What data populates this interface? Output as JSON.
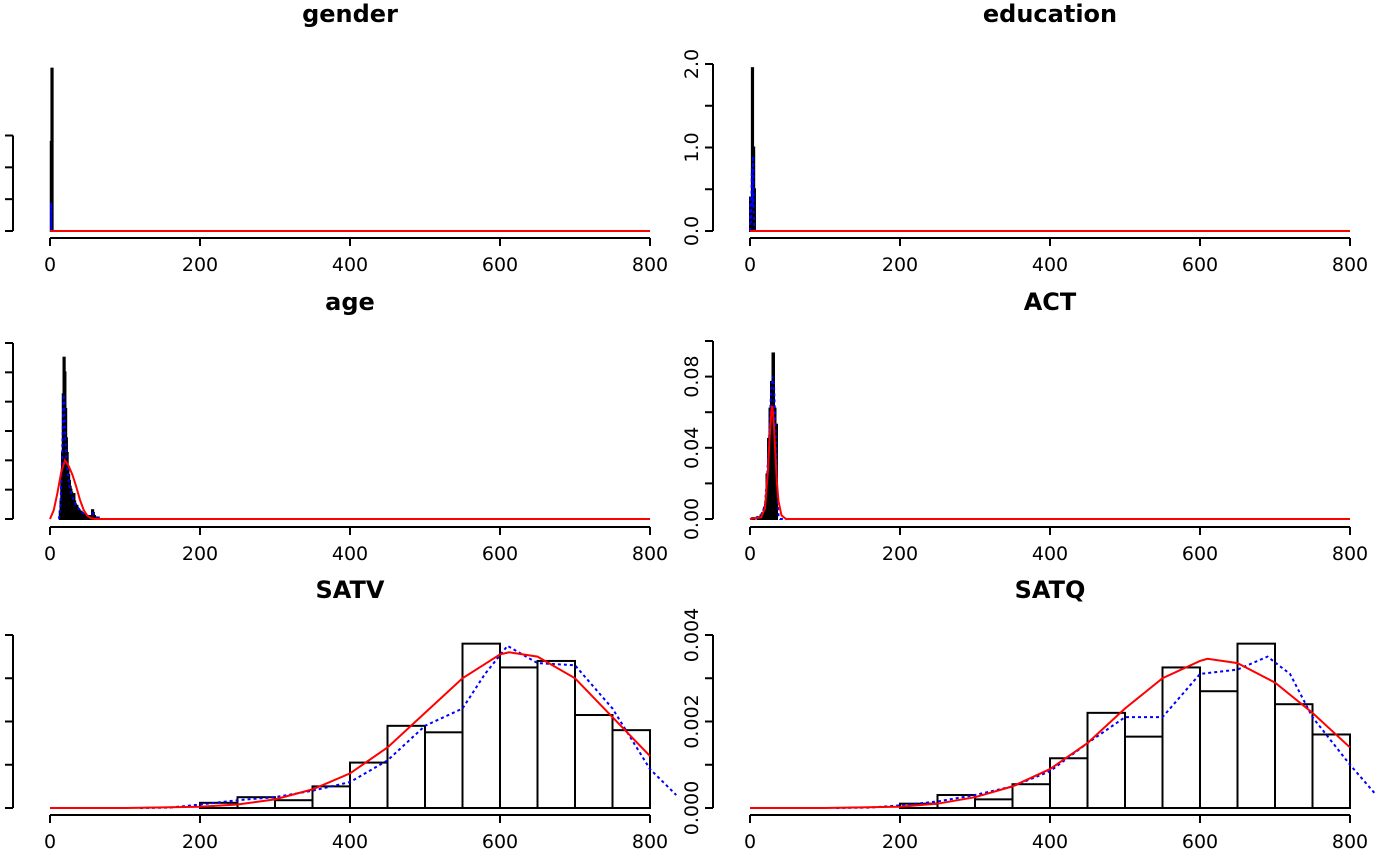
{
  "page_title": "",
  "chart_data": [
    {
      "type": "histogram",
      "title": "gender",
      "xlabel": "",
      "ylabel": "",
      "xlim": [
        0,
        800
      ],
      "ylim": [
        0,
        3
      ],
      "x_ticks": [
        "0",
        "200",
        "400",
        "600",
        "800"
      ],
      "y_ticks": [],
      "y_tick_marks": [
        0,
        0.5,
        1,
        1.5
      ],
      "bins": [
        [
          1.0,
          1.1,
          1.4
        ],
        [
          1.9,
          2.0,
          2.55
        ]
      ],
      "density_line": [
        [
          0,
          0
        ],
        [
          1.6,
          0
        ],
        [
          1.6,
          0.45
        ],
        [
          1.7,
          0
        ],
        [
          800,
          0
        ]
      ],
      "normal_curve": [
        [
          0,
          0
        ],
        [
          800,
          0
        ]
      ]
    },
    {
      "type": "histogram",
      "title": "education",
      "xlabel": "",
      "ylabel": "",
      "xlim": [
        0,
        800
      ],
      "ylim": [
        0,
        2
      ],
      "x_ticks": [
        "0",
        "200",
        "400",
        "600",
        "800"
      ],
      "y_ticks": [
        "0.0",
        "1.0",
        "2.0"
      ],
      "y_tick_marks": [
        0,
        0.5,
        1,
        1.5,
        2
      ],
      "bins": [
        [
          0,
          0.5,
          0.4
        ],
        [
          1.0,
          1.5,
          0.4
        ],
        [
          2.5,
          3.0,
          1.95
        ],
        [
          3.0,
          3.5,
          0.6
        ],
        [
          4.0,
          4.5,
          1.0
        ],
        [
          5.0,
          5.5,
          0.5
        ]
      ],
      "density_line": [
        [
          0,
          0
        ],
        [
          0.5,
          0.38
        ],
        [
          1.5,
          0.1
        ],
        [
          2.5,
          0.75
        ],
        [
          3.5,
          0.3
        ],
        [
          4.2,
          0.9
        ],
        [
          5.0,
          0.2
        ],
        [
          6.0,
          0
        ],
        [
          800,
          0
        ]
      ],
      "normal_curve": [
        [
          0,
          0
        ],
        [
          800,
          0
        ]
      ]
    },
    {
      "type": "histogram",
      "title": "age",
      "xlabel": "",
      "ylabel": "",
      "xlim": [
        0,
        800
      ],
      "ylim": [
        0,
        0.12
      ],
      "x_ticks": [
        "0",
        "200",
        "400",
        "600",
        "800"
      ],
      "y_ticks": [],
      "y_tick_marks": [
        0,
        0.02,
        0.04,
        0.06,
        0.08,
        0.1,
        0.12
      ],
      "bins": [
        [
          13,
          14,
          0.005
        ],
        [
          14,
          15,
          0.012
        ],
        [
          15,
          16,
          0.03
        ],
        [
          16,
          17,
          0.045
        ],
        [
          17,
          18,
          0.085
        ],
        [
          18,
          19,
          0.11
        ],
        [
          19,
          20,
          0.1
        ],
        [
          20,
          21,
          0.075
        ],
        [
          21,
          22,
          0.055
        ],
        [
          22,
          23,
          0.045
        ],
        [
          23,
          24,
          0.035
        ],
        [
          24,
          25,
          0.03
        ],
        [
          25,
          26,
          0.026
        ],
        [
          26,
          27,
          0.022
        ],
        [
          27,
          28,
          0.02
        ],
        [
          28,
          29,
          0.018
        ],
        [
          29,
          30,
          0.016
        ],
        [
          30,
          31,
          0.014
        ],
        [
          31,
          32,
          0.017
        ],
        [
          32,
          33,
          0.012
        ],
        [
          33,
          34,
          0.01
        ],
        [
          34,
          35,
          0.009
        ],
        [
          35,
          36,
          0.009
        ],
        [
          36,
          37,
          0.007
        ],
        [
          37,
          38,
          0.006
        ],
        [
          38,
          39,
          0.006
        ],
        [
          39,
          40,
          0.005
        ],
        [
          40,
          42,
          0.005
        ],
        [
          42,
          44,
          0.004
        ],
        [
          44,
          46,
          0.003
        ],
        [
          46,
          48,
          0.003
        ],
        [
          48,
          50,
          0.002
        ],
        [
          50,
          52,
          0.002
        ],
        [
          52,
          54,
          0.002
        ],
        [
          54,
          56,
          0.002
        ],
        [
          56,
          57,
          0.006
        ],
        [
          57,
          58,
          0.004
        ],
        [
          58,
          60,
          0.002
        ],
        [
          60,
          65,
          0.001
        ]
      ],
      "density_line": [
        [
          12,
          0
        ],
        [
          14,
          0.01
        ],
        [
          16,
          0.04
        ],
        [
          18,
          0.085
        ],
        [
          19,
          0.082
        ],
        [
          20,
          0.06
        ],
        [
          22,
          0.04
        ],
        [
          24,
          0.03
        ],
        [
          26,
          0.022
        ],
        [
          30,
          0.015
        ],
        [
          34,
          0.01
        ],
        [
          40,
          0.006
        ],
        [
          46,
          0.003
        ],
        [
          52,
          0.002
        ],
        [
          57,
          0.004
        ],
        [
          62,
          0.001
        ],
        [
          66,
          0
        ],
        [
          800,
          0
        ]
      ],
      "normal_curve": [
        [
          0,
          0
        ],
        [
          5,
          0.006
        ],
        [
          10,
          0.018
        ],
        [
          15,
          0.032
        ],
        [
          20,
          0.04
        ],
        [
          25,
          0.036
        ],
        [
          30,
          0.03
        ],
        [
          35,
          0.022
        ],
        [
          40,
          0.013
        ],
        [
          45,
          0.006
        ],
        [
          50,
          0.002
        ],
        [
          55,
          0.0005
        ],
        [
          60,
          0
        ],
        [
          800,
          0
        ]
      ]
    },
    {
      "type": "histogram",
      "title": "ACT",
      "xlabel": "",
      "ylabel": "",
      "xlim": [
        0,
        800
      ],
      "ylim": [
        0,
        0.1
      ],
      "x_ticks": [
        "0",
        "200",
        "400",
        "600",
        "800"
      ],
      "y_ticks": [
        "0.00",
        "0.04",
        "0.08"
      ],
      "y_tick_marks": [
        0,
        0.02,
        0.04,
        0.06,
        0.08,
        0.1
      ],
      "bins": [
        [
          3,
          6,
          0.0005
        ],
        [
          10,
          12,
          0.001
        ],
        [
          14,
          16,
          0.002
        ],
        [
          16,
          18,
          0.003
        ],
        [
          18,
          20,
          0.005
        ],
        [
          20,
          22,
          0.008
        ],
        [
          22,
          24,
          0.025
        ],
        [
          24,
          26,
          0.045
        ],
        [
          26,
          28,
          0.062
        ],
        [
          28,
          30,
          0.077
        ],
        [
          30,
          32,
          0.093
        ],
        [
          32,
          34,
          0.062
        ],
        [
          34,
          36,
          0.053
        ]
      ],
      "density_line": [
        [
          0,
          0
        ],
        [
          10,
          0.001
        ],
        [
          16,
          0.003
        ],
        [
          20,
          0.008
        ],
        [
          23,
          0.025
        ],
        [
          26,
          0.05
        ],
        [
          28,
          0.07
        ],
        [
          30,
          0.08
        ],
        [
          32,
          0.075
        ],
        [
          34,
          0.05
        ],
        [
          36,
          0.02
        ],
        [
          38,
          0.002
        ],
        [
          40,
          0
        ],
        [
          800,
          0
        ]
      ],
      "normal_curve": [
        [
          0,
          0
        ],
        [
          15,
          0.001
        ],
        [
          20,
          0.006
        ],
        [
          24,
          0.028
        ],
        [
          26,
          0.045
        ],
        [
          28,
          0.058
        ],
        [
          29,
          0.063
        ],
        [
          30,
          0.063
        ],
        [
          32,
          0.052
        ],
        [
          34,
          0.035
        ],
        [
          36,
          0.02
        ],
        [
          38,
          0.01
        ],
        [
          42,
          0.002
        ],
        [
          48,
          0
        ],
        [
          800,
          0
        ]
      ]
    },
    {
      "type": "histogram",
      "title": "SATV",
      "xlabel": "",
      "ylabel": "",
      "xlim": [
        0,
        800
      ],
      "ylim": [
        0,
        0.004
      ],
      "x_ticks": [
        "0",
        "200",
        "400",
        "600",
        "800"
      ],
      "y_ticks": [],
      "y_tick_marks": [
        0,
        0.001,
        0.002,
        0.003,
        0.004
      ],
      "bins": [
        [
          200,
          250,
          0.00012
        ],
        [
          250,
          300,
          0.00025
        ],
        [
          300,
          350,
          0.00018
        ],
        [
          350,
          400,
          0.0005
        ],
        [
          400,
          450,
          0.00105
        ],
        [
          450,
          500,
          0.0019
        ],
        [
          500,
          550,
          0.00175
        ],
        [
          550,
          600,
          0.0038
        ],
        [
          600,
          650,
          0.00325
        ],
        [
          650,
          700,
          0.0034
        ],
        [
          700,
          750,
          0.00215
        ],
        [
          750,
          800,
          0.0018
        ]
      ],
      "density_line": [
        [
          120,
          0
        ],
        [
          160,
          1e-05
        ],
        [
          200,
          8e-05
        ],
        [
          250,
          0.00018
        ],
        [
          300,
          0.00025
        ],
        [
          350,
          0.0004
        ],
        [
          400,
          0.0006
        ],
        [
          450,
          0.0011
        ],
        [
          500,
          0.0019
        ],
        [
          550,
          0.0023
        ],
        [
          580,
          0.0031
        ],
        [
          610,
          0.00375
        ],
        [
          650,
          0.00335
        ],
        [
          700,
          0.0033
        ],
        [
          750,
          0.0023
        ],
        [
          800,
          0.0009
        ],
        [
          835,
          0.0003
        ]
      ],
      "normal_curve": [
        [
          0,
          0
        ],
        [
          100,
          0
        ],
        [
          200,
          3e-05
        ],
        [
          250,
          8e-05
        ],
        [
          300,
          0.0002
        ],
        [
          350,
          0.00043
        ],
        [
          400,
          0.0008
        ],
        [
          450,
          0.0014
        ],
        [
          500,
          0.0022
        ],
        [
          550,
          0.003
        ],
        [
          600,
          0.00355
        ],
        [
          612,
          0.0036
        ],
        [
          650,
          0.0035
        ],
        [
          700,
          0.003
        ],
        [
          750,
          0.0021
        ],
        [
          800,
          0.0012
        ]
      ]
    },
    {
      "type": "histogram",
      "title": "SATQ",
      "xlabel": "",
      "ylabel": "",
      "xlim": [
        0,
        800
      ],
      "ylim": [
        0,
        0.004
      ],
      "x_ticks": [
        "0",
        "200",
        "400",
        "600",
        "800"
      ],
      "y_ticks": [
        "0.000",
        "0.002",
        "0.004"
      ],
      "y_tick_marks": [
        0,
        0.001,
        0.002,
        0.003,
        0.004
      ],
      "bins": [
        [
          200,
          250,
          0.0001
        ],
        [
          250,
          300,
          0.0003
        ],
        [
          300,
          350,
          0.0002
        ],
        [
          350,
          400,
          0.00055
        ],
        [
          400,
          450,
          0.00115
        ],
        [
          450,
          500,
          0.0022
        ],
        [
          500,
          550,
          0.00165
        ],
        [
          550,
          600,
          0.00325
        ],
        [
          600,
          650,
          0.0027
        ],
        [
          650,
          700,
          0.0038
        ],
        [
          700,
          750,
          0.0024
        ],
        [
          750,
          800,
          0.0017
        ]
      ],
      "density_line": [
        [
          115,
          0
        ],
        [
          160,
          1e-05
        ],
        [
          200,
          6e-05
        ],
        [
          250,
          0.00015
        ],
        [
          300,
          0.0003
        ],
        [
          350,
          0.0005
        ],
        [
          400,
          0.00085
        ],
        [
          450,
          0.0015
        ],
        [
          500,
          0.0021
        ],
        [
          550,
          0.0021
        ],
        [
          600,
          0.0031
        ],
        [
          650,
          0.0032
        ],
        [
          690,
          0.0035
        ],
        [
          720,
          0.0031
        ],
        [
          750,
          0.0021
        ],
        [
          800,
          0.001
        ],
        [
          835,
          0.0003
        ]
      ],
      "normal_curve": [
        [
          0,
          0
        ],
        [
          100,
          0
        ],
        [
          200,
          3e-05
        ],
        [
          250,
          0.0001
        ],
        [
          300,
          0.00025
        ],
        [
          350,
          0.0005
        ],
        [
          400,
          0.0009
        ],
        [
          450,
          0.0015
        ],
        [
          500,
          0.0023
        ],
        [
          550,
          0.003
        ],
        [
          600,
          0.0034
        ],
        [
          610,
          0.00345
        ],
        [
          650,
          0.00335
        ],
        [
          700,
          0.0029
        ],
        [
          750,
          0.0022
        ],
        [
          800,
          0.0014
        ]
      ]
    }
  ]
}
